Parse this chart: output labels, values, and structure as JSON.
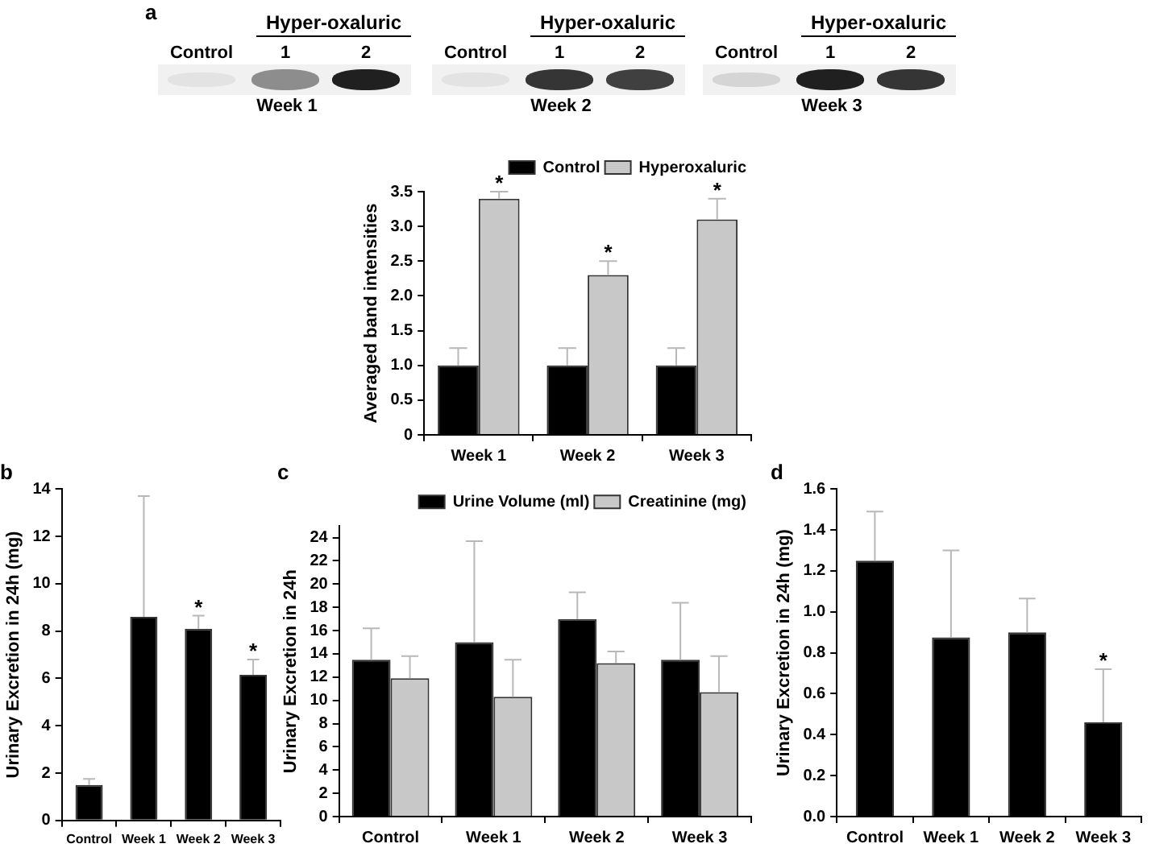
{
  "chart_data": [
    {
      "type": "other",
      "title": "a",
      "annotations": [
        "Control",
        "Hyper-oxaluric",
        "1",
        "2",
        "Week 1",
        "Control",
        "Hyper-oxaluric",
        "1",
        "2",
        "Week 2",
        "Control",
        "Hyper-oxaluric",
        "1",
        "2",
        "Week 3"
      ]
    },
    {
      "type": "bar",
      "ylabel": "Averaged band intensities",
      "categories": [
        "Week 1",
        "Week 2",
        "Week 3"
      ],
      "series": [
        {
          "name": "Control",
          "color": "#000000",
          "values": [
            1.0,
            1.0,
            1.0
          ],
          "errors": [
            [
              1.0,
              1.25
            ],
            [
              1.0,
              1.25
            ],
            [
              1.0,
              1.25
            ]
          ]
        },
        {
          "name": "Hyperoxaluric",
          "color": "#c8c8c8",
          "values": [
            3.4,
            2.3,
            3.1
          ],
          "errors": [
            [
              3.4,
              3.5
            ],
            [
              2.3,
              2.5
            ],
            [
              3.1,
              3.4
            ]
          ]
        }
      ],
      "ylim": [
        0,
        3.5
      ],
      "yticks": [
        0,
        0.5,
        {
          "value": 1,
          "label": "1.0"
        },
        1.5,
        {
          "value": 2,
          "label": "2.0"
        },
        2.5,
        {
          "value": 3,
          "label": "3.0"
        },
        3.5
      ],
      "legend": "top right",
      "annotations": [
        {
          "text": "*",
          "x": "Week 1",
          "y": 3.4
        },
        {
          "text": "*",
          "x": "Week 2",
          "y": 2.3
        },
        {
          "text": "*",
          "x": "Week 3",
          "y": 3.1
        }
      ]
    },
    {
      "type": "bar",
      "title": "b",
      "ylabel": "Urinary Excretion in 24h (mg)",
      "categories": [
        "Control",
        "Week 1",
        "Week 2",
        "Week 3"
      ],
      "values": [
        1.5,
        8.6,
        8.1,
        6.15
      ],
      "color": "#000000",
      "errors": [
        [
          1.5,
          1.75
        ],
        [
          8.6,
          13.7
        ],
        [
          8.1,
          8.65
        ],
        [
          6.15,
          6.8
        ]
      ],
      "ylim": [
        0,
        14
      ],
      "yticks": [
        0,
        2,
        4,
        6,
        8,
        10,
        12,
        14
      ],
      "annotations": [
        {
          "text": "*",
          "x": "Week 2",
          "y": 8.1
        },
        {
          "text": "*",
          "x": "Week 3",
          "y": 6.15
        }
      ]
    },
    {
      "type": "bar",
      "title": "c",
      "ylabel": "Urinary Excretion in 24h",
      "categories": [
        "Control",
        "Week 1",
        "Week 2",
        "Week 3"
      ],
      "series": [
        {
          "name": "Urine Volume (ml)",
          "color": "#000000",
          "values": [
            13.5,
            15.0,
            17.0,
            13.5
          ],
          "errors": [
            [
              13.5,
              16.2
            ],
            [
              15.0,
              23.7
            ],
            [
              17.0,
              19.3
            ],
            [
              13.5,
              18.4
            ]
          ]
        },
        {
          "name": "Creatinine (mg)",
          "color": "#c8c8c8",
          "values": [
            11.9,
            10.3,
            13.2,
            10.7
          ],
          "errors": [
            [
              11.9,
              13.8
            ],
            [
              10.3,
              13.5
            ],
            [
              13.2,
              14.2
            ],
            [
              10.7,
              13.8
            ]
          ]
        }
      ],
      "ylim": [
        0,
        25
      ],
      "yticks": [
        0,
        2,
        4,
        6,
        8,
        10,
        12,
        14,
        16,
        18,
        20,
        22,
        24
      ],
      "legend": "top right"
    },
    {
      "type": "bar",
      "title": "d",
      "ylabel": "Urinary Excretion in 24h (mg)",
      "categories": [
        "Control",
        "Week 1",
        "Week 2",
        "Week 3"
      ],
      "values": [
        1.25,
        0.875,
        0.9,
        0.46
      ],
      "color": "#000000",
      "errors": [
        [
          1.25,
          1.49
        ],
        [
          0.875,
          1.3
        ],
        [
          0.9,
          1.065
        ],
        [
          0.46,
          0.72
        ]
      ],
      "ylim": [
        0,
        1.6
      ],
      "yticks": [
        {
          "value": 0,
          "label": "0.0"
        },
        0.2,
        0.4,
        0.6,
        0.8,
        {
          "value": 1,
          "label": "1.0"
        },
        1.2,
        1.4,
        1.6
      ],
      "annotations": [
        {
          "text": "*",
          "x": "Week 3",
          "y": 0.46
        }
      ]
    }
  ]
}
